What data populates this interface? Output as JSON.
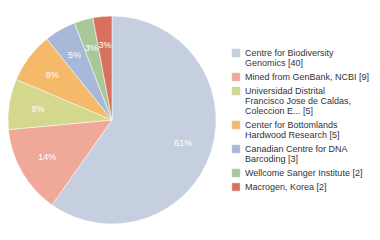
{
  "chart_data": {
    "type": "pie",
    "categories": [
      "Centre for Biodiversity\nGenomics [40]",
      "Mined from GenBank, NCBI [9]",
      "Universidad Distrital\nFrancisco Jose de Caldas,\nColeccion E... [5]",
      "Center for Bottomlands\nHardwood Research [5]",
      "Canadian Centre for DNA\nBarcoding [3]",
      "Wellcome Sanger Institute [2]",
      "Macrogen, Korea [2]"
    ],
    "values": [
      61,
      14,
      8,
      8,
      5,
      3,
      3
    ],
    "value_labels": [
      "61%",
      "14%",
      "8%",
      "8%",
      "5%",
      "3%",
      "3%"
    ],
    "colors": [
      "#c5cfe0",
      "#f0a898",
      "#d4d88c",
      "#f5b96a",
      "#a8b8d8",
      "#a8c898",
      "#d87060"
    ],
    "data_labels": true,
    "legend": "right"
  }
}
